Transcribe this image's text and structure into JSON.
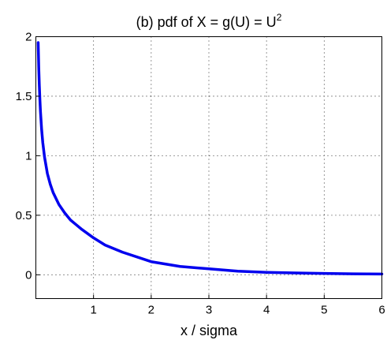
{
  "chart_data": {
    "type": "line",
    "title": "(b) pdf of X = g(U) = U",
    "title_superscript": "2",
    "xlabel": "x / sigma",
    "ylabel": "",
    "xlim": [
      0,
      6
    ],
    "ylim": [
      -0.2,
      2
    ],
    "xticks": [
      1,
      2,
      3,
      4,
      5,
      6
    ],
    "yticks": [
      0,
      0.5,
      1,
      1.5,
      2
    ],
    "xtick_labels": [
      "1",
      "2",
      "3",
      "4",
      "5",
      "6"
    ],
    "ytick_labels": [
      "0",
      "0.5",
      "1",
      "1.5",
      "2"
    ],
    "grid": true,
    "series": [
      {
        "color": "#0000ee",
        "x": [
          0.04,
          0.05,
          0.06,
          0.07,
          0.08,
          0.1,
          0.12,
          0.15,
          0.2,
          0.25,
          0.3,
          0.4,
          0.5,
          0.6,
          0.7,
          0.8,
          1.0,
          1.2,
          1.5,
          2.0,
          2.5,
          3.0,
          3.5,
          4.0,
          4.5,
          5.0,
          5.5,
          6.0
        ],
        "y": [
          1.95,
          1.74,
          1.59,
          1.47,
          1.37,
          1.22,
          1.11,
          0.99,
          0.85,
          0.76,
          0.69,
          0.59,
          0.52,
          0.46,
          0.42,
          0.38,
          0.31,
          0.25,
          0.19,
          0.11,
          0.07,
          0.05,
          0.03,
          0.02,
          0.015,
          0.011,
          0.008,
          0.006
        ]
      }
    ]
  }
}
